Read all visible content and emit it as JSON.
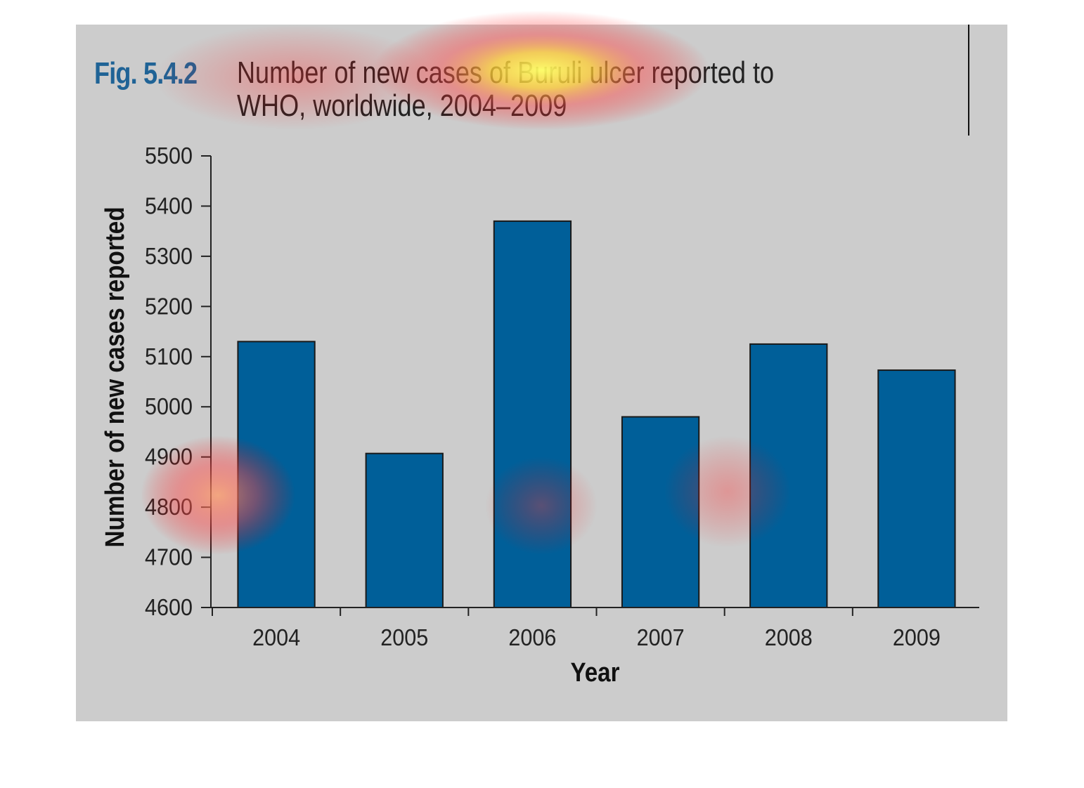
{
  "figure": {
    "label": "Fig. 5.4.2",
    "title": "Number of new cases of Buruli ulcer reported to WHO, worldwide, 2004–2009"
  },
  "colors": {
    "bar": "#005f99",
    "background": "#cccccc",
    "figure_label": "#1f6396"
  },
  "chart_data": {
    "type": "bar",
    "categories": [
      "2004",
      "2005",
      "2006",
      "2007",
      "2008",
      "2009"
    ],
    "values": [
      5130,
      4907,
      5370,
      4980,
      5125,
      5073
    ],
    "xlabel": "Year",
    "ylabel": "Number of new cases reported",
    "ylim": [
      4600,
      5500
    ],
    "yticks": [
      4600,
      4700,
      4800,
      4900,
      5000,
      5100,
      5200,
      5300,
      5400,
      5500
    ],
    "grid": false,
    "legend": "none"
  }
}
